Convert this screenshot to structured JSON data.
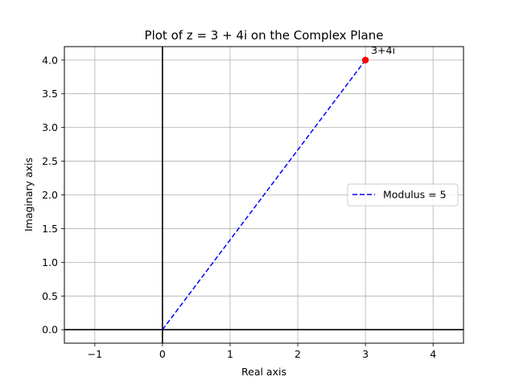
{
  "chart_data": {
    "type": "line",
    "title": "Plot of z = 3 + 4i on the Complex Plane",
    "xlabel": "Real axis",
    "ylabel": "Imaginary axis",
    "xlim": [
      -1.45,
      4.45
    ],
    "ylim": [
      -0.2,
      4.2
    ],
    "xticks": [
      -1,
      0,
      1,
      2,
      3,
      4
    ],
    "xtick_labels": [
      "−1",
      "0",
      "1",
      "2",
      "3",
      "4"
    ],
    "yticks": [
      0.0,
      0.5,
      1.0,
      1.5,
      2.0,
      2.5,
      3.0,
      3.5,
      4.0
    ],
    "ytick_labels": [
      "0.0",
      "0.5",
      "1.0",
      "1.5",
      "2.0",
      "2.5",
      "3.0",
      "3.5",
      "4.0"
    ],
    "grid": true,
    "axis_lines": {
      "x": 0,
      "y": 0,
      "color": "#000000"
    },
    "series": [
      {
        "name": "Modulus = 5",
        "style": "dashed",
        "color": "#0000ff",
        "x": [
          0,
          3
        ],
        "y": [
          0,
          4
        ]
      }
    ],
    "points": [
      {
        "x": 3,
        "y": 4,
        "label": "3+4i",
        "color": "#ff0000"
      }
    ],
    "legend": {
      "position": "center-right",
      "entries": [
        "Modulus = 5"
      ]
    }
  }
}
